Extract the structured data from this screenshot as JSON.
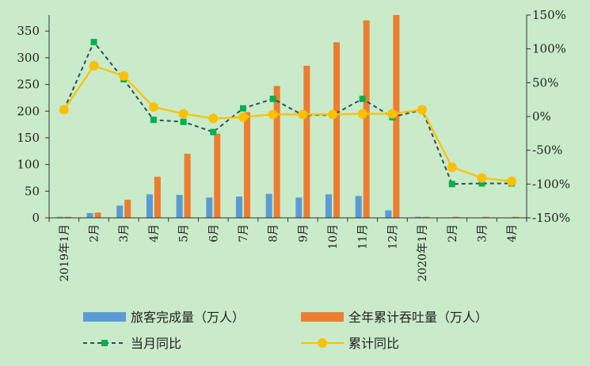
{
  "chart_data": {
    "type": "bar",
    "categories": [
      "2019年1月",
      "2月",
      "3月",
      "4月",
      "5月",
      "6月",
      "7月",
      "8月",
      "9月",
      "10月",
      "11月",
      "12月",
      "2020年1月",
      "2月",
      "3月",
      "4月"
    ],
    "series": [
      {
        "name": "旅客完成量（万人）",
        "kind": "bar",
        "axis": "left",
        "color": "#5b9bd5",
        "values": [
          2,
          9,
          23,
          44,
          43,
          38,
          40,
          45,
          38,
          44,
          41,
          14,
          2,
          0,
          0,
          0
        ]
      },
      {
        "name": "全年累计吞吐量（万人）",
        "kind": "bar",
        "axis": "left",
        "color": "#ed7d31",
        "values": [
          2,
          10,
          34,
          77,
          120,
          158,
          198,
          247,
          285,
          329,
          370,
          384,
          2,
          2,
          2,
          2
        ]
      },
      {
        "name": "当月同比",
        "kind": "line",
        "axis": "right",
        "color": "#00b050",
        "line_color": "#2f4f5f",
        "dash": true,
        "marker": "square",
        "values": [
          10,
          110,
          55,
          -5,
          -8,
          -23,
          12,
          26,
          2,
          2,
          26,
          -1,
          10,
          -100,
          -99,
          -99
        ]
      },
      {
        "name": "累计同比",
        "kind": "line",
        "axis": "right",
        "color": "#ffc000",
        "dash": false,
        "marker": "circle",
        "values": [
          10,
          75,
          60,
          14,
          4,
          -3,
          -1,
          3,
          3,
          3,
          4,
          4,
          10,
          -75,
          -91,
          -96
        ]
      }
    ],
    "left_axis": {
      "min": 0,
      "max": 380,
      "ticks": [
        0,
        50,
        100,
        150,
        200,
        250,
        300,
        350
      ]
    },
    "right_axis": {
      "min": -150,
      "max": 150,
      "ticks": [
        -150,
        -100,
        -50,
        0,
        50,
        100,
        150
      ],
      "tick_suffix": "%"
    },
    "grid": false,
    "legend_position": "bottom"
  }
}
